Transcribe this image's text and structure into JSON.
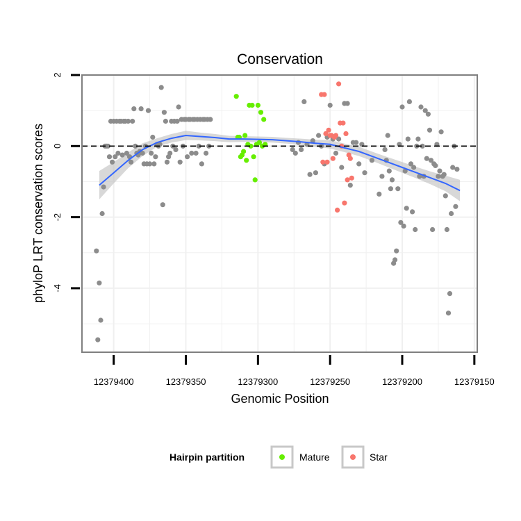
{
  "chart_data": {
    "type": "scatter",
    "title": "Conservation",
    "xlabel": "Genomic Position",
    "ylabel": "phyloP LRT conservation scores",
    "xlim": [
      12379422,
      12379148
    ],
    "ylim": [
      -5.8,
      2.0
    ],
    "x_reversed": true,
    "x_ticks": [
      12379400,
      12379350,
      12379300,
      12379250,
      12379200,
      12379150
    ],
    "x_tick_labels": [
      "12379400",
      "12379350",
      "12379300",
      "12379250",
      "12379200",
      "12379150"
    ],
    "y_ticks": [
      2,
      0,
      -2,
      -4
    ],
    "y_tick_labels": [
      "2",
      "0",
      "-2",
      "-4"
    ],
    "reference_line": {
      "y": 0,
      "style": "dashed"
    },
    "grid": true,
    "colors": {
      "other": "#8c8c8c",
      "mature": "#66ee00",
      "star": "#f8766d",
      "smooth": "#3366ff",
      "ribbon": "#bebebe",
      "panel_border": "#7f7f7f",
      "grid": "#f0f0f0"
    },
    "legend": {
      "title": "Hairpin partition",
      "position": "bottom",
      "entries": [
        {
          "label": "Mature",
          "color": "#66ee00"
        },
        {
          "label": "Star",
          "color": "#f8766d"
        }
      ]
    },
    "series": [
      {
        "name": "Other",
        "color": "#8c8c8c",
        "points": [
          [
            12379412,
            -2.95
          ],
          [
            12379411,
            -5.45
          ],
          [
            12379410,
            -3.85
          ],
          [
            12379409,
            -4.9
          ],
          [
            12379408,
            -1.9
          ],
          [
            12379407,
            -1.15
          ],
          [
            12379406,
            0.0
          ],
          [
            12379405,
            0.0
          ],
          [
            12379404,
            0.0
          ],
          [
            12379403,
            -0.3
          ],
          [
            12379402,
            0.7
          ],
          [
            12379401,
            -0.45
          ],
          [
            12379400,
            0.7
          ],
          [
            12379399,
            -0.3
          ],
          [
            12379398,
            0.7
          ],
          [
            12379397,
            -0.2
          ],
          [
            12379396,
            0.7
          ],
          [
            12379395,
            0.7
          ],
          [
            12379394,
            -0.25
          ],
          [
            12379393,
            0.7
          ],
          [
            12379392,
            0.7
          ],
          [
            12379391,
            -0.2
          ],
          [
            12379390,
            0.7
          ],
          [
            12379389,
            -0.3
          ],
          [
            12379388,
            -0.45
          ],
          [
            12379387,
            0.7
          ],
          [
            12379386,
            1.05
          ],
          [
            12379385,
            0.0
          ],
          [
            12379384,
            -0.2
          ],
          [
            12379383,
            -0.25
          ],
          [
            12379382,
            -0.15
          ],
          [
            12379381,
            1.05
          ],
          [
            12379380,
            -0.2
          ],
          [
            12379379,
            -0.5
          ],
          [
            12379378,
            0.0
          ],
          [
            12379377,
            -0.5
          ],
          [
            12379376,
            1.0
          ],
          [
            12379375,
            -0.5
          ],
          [
            12379374,
            -0.2
          ],
          [
            12379373,
            0.25
          ],
          [
            12379372,
            -0.5
          ],
          [
            12379371,
            -0.3
          ],
          [
            12379370,
            0.05
          ],
          [
            12379369,
            0.0
          ],
          [
            12379368,
            0.05
          ],
          [
            12379367,
            1.65
          ],
          [
            12379366,
            -1.65
          ],
          [
            12379365,
            0.95
          ],
          [
            12379364,
            0.7
          ],
          [
            12379363,
            -0.45
          ],
          [
            12379362,
            -0.3
          ],
          [
            12379361,
            -0.2
          ],
          [
            12379360,
            0.7
          ],
          [
            12379359,
            0.0
          ],
          [
            12379358,
            0.7
          ],
          [
            12379357,
            -0.1
          ],
          [
            12379356,
            0.7
          ],
          [
            12379355,
            1.1
          ],
          [
            12379354,
            -0.45
          ],
          [
            12379353,
            0.75
          ],
          [
            12379352,
            0.0
          ],
          [
            12379351,
            0.75
          ],
          [
            12379350,
            0.75
          ],
          [
            12379349,
            -0.3
          ],
          [
            12379348,
            0.75
          ],
          [
            12379347,
            0.75
          ],
          [
            12379346,
            -0.2
          ],
          [
            12379345,
            0.75
          ],
          [
            12379344,
            0.75
          ],
          [
            12379343,
            -0.2
          ],
          [
            12379342,
            0.75
          ],
          [
            12379341,
            0.0
          ],
          [
            12379340,
            0.75
          ],
          [
            12379339,
            -0.5
          ],
          [
            12379338,
            0.75
          ],
          [
            12379337,
            0.75
          ],
          [
            12379336,
            -0.2
          ],
          [
            12379335,
            0.75
          ],
          [
            12379334,
            0.0
          ],
          [
            12379333,
            0.75
          ],
          [
            12379276,
            -0.1
          ],
          [
            12379274,
            -0.2
          ],
          [
            12379272,
            0.1
          ],
          [
            12379270,
            -0.1
          ],
          [
            12379268,
            1.25
          ],
          [
            12379266,
            0.05
          ],
          [
            12379264,
            -0.8
          ],
          [
            12379262,
            0.15
          ],
          [
            12379260,
            -0.75
          ],
          [
            12379258,
            0.3
          ],
          [
            12379256,
            0.0
          ],
          [
            12379254,
            -0.5
          ],
          [
            12379252,
            0.25
          ],
          [
            12379250,
            1.15
          ],
          [
            12379248,
            0.2
          ],
          [
            12379246,
            -0.2
          ],
          [
            12379244,
            0.2
          ],
          [
            12379242,
            -0.6
          ],
          [
            12379240,
            1.2
          ],
          [
            12379238,
            1.2
          ],
          [
            12379236,
            -1.1
          ],
          [
            12379234,
            0.1
          ],
          [
            12379232,
            0.1
          ],
          [
            12379230,
            -0.5
          ],
          [
            12379228,
            0.05
          ],
          [
            12379226,
            -0.75
          ],
          [
            12379221,
            -0.4
          ],
          [
            12379216,
            -1.35
          ],
          [
            12379214,
            -0.85
          ],
          [
            12379212,
            -0.1
          ],
          [
            12379211,
            -0.4
          ],
          [
            12379210,
            0.3
          ],
          [
            12379209,
            -0.7
          ],
          [
            12379208,
            -1.2
          ],
          [
            12379207,
            -0.95
          ],
          [
            12379206,
            -3.3
          ],
          [
            12379205,
            -3.2
          ],
          [
            12379204,
            -2.95
          ],
          [
            12379203,
            -1.2
          ],
          [
            12379202,
            0.05
          ],
          [
            12379201,
            -2.15
          ],
          [
            12379200,
            1.1
          ],
          [
            12379199,
            -2.25
          ],
          [
            12379198,
            -0.7
          ],
          [
            12379197,
            -1.75
          ],
          [
            12379196,
            0.2
          ],
          [
            12379195,
            1.25
          ],
          [
            12379194,
            -0.5
          ],
          [
            12379193,
            -1.85
          ],
          [
            12379192,
            -0.6
          ],
          [
            12379191,
            -2.35
          ],
          [
            12379190,
            0.0
          ],
          [
            12379189,
            0.2
          ],
          [
            12379188,
            -0.85
          ],
          [
            12379187,
            1.1
          ],
          [
            12379186,
            0.0
          ],
          [
            12379185,
            -0.85
          ],
          [
            12379184,
            1.0
          ],
          [
            12379183,
            -0.35
          ],
          [
            12379182,
            0.9
          ],
          [
            12379181,
            0.45
          ],
          [
            12379180,
            -0.4
          ],
          [
            12379179,
            -2.35
          ],
          [
            12379178,
            -0.5
          ],
          [
            12379177,
            -0.55
          ],
          [
            12379176,
            0.05
          ],
          [
            12379175,
            -0.85
          ],
          [
            12379174,
            -0.7
          ],
          [
            12379173,
            0.4
          ],
          [
            12379172,
            -0.85
          ],
          [
            12379171,
            -0.8
          ],
          [
            12379170,
            -1.4
          ],
          [
            12379169,
            -2.35
          ],
          [
            12379168,
            -4.7
          ],
          [
            12379167,
            -4.15
          ],
          [
            12379166,
            -1.9
          ],
          [
            12379165,
            -0.6
          ],
          [
            12379164,
            0.0
          ],
          [
            12379163,
            -1.7
          ],
          [
            12379162,
            -0.65
          ]
        ]
      },
      {
        "name": "Mature",
        "color": "#66ee00",
        "points": [
          [
            12379315,
            1.4
          ],
          [
            12379314,
            0.25
          ],
          [
            12379313,
            0.25
          ],
          [
            12379312,
            -0.3
          ],
          [
            12379311,
            -0.25
          ],
          [
            12379310,
            -0.15
          ],
          [
            12379309,
            0.3
          ],
          [
            12379308,
            -0.4
          ],
          [
            12379307,
            0.05
          ],
          [
            12379306,
            1.15
          ],
          [
            12379305,
            0.0
          ],
          [
            12379304,
            1.15
          ],
          [
            12379303,
            -0.3
          ],
          [
            12379302,
            -0.95
          ],
          [
            12379301,
            0.05
          ],
          [
            12379300,
            1.15
          ],
          [
            12379299,
            0.1
          ],
          [
            12379298,
            0.95
          ],
          [
            12379297,
            0.0
          ],
          [
            12379296,
            0.75
          ],
          [
            12379295,
            0.05
          ]
        ]
      },
      {
        "name": "Star",
        "color": "#f8766d",
        "points": [
          [
            12379256,
            1.45
          ],
          [
            12379255,
            -0.45
          ],
          [
            12379254,
            1.45
          ],
          [
            12379253,
            0.35
          ],
          [
            12379252,
            -0.45
          ],
          [
            12379251,
            0.45
          ],
          [
            12379250,
            0.3
          ],
          [
            12379249,
            0.3
          ],
          [
            12379248,
            -0.35
          ],
          [
            12379247,
            0.25
          ],
          [
            12379246,
            0.3
          ],
          [
            12379245,
            -1.8
          ],
          [
            12379244,
            1.75
          ],
          [
            12379243,
            0.65
          ],
          [
            12379242,
            0.0
          ],
          [
            12379241,
            0.65
          ],
          [
            12379240,
            -1.6
          ],
          [
            12379239,
            0.35
          ],
          [
            12379238,
            -0.95
          ],
          [
            12379237,
            -0.25
          ],
          [
            12379236,
            -0.35
          ],
          [
            12379235,
            -0.9
          ]
        ]
      }
    ],
    "smooth": {
      "x": [
        12379410,
        12379400,
        12379390,
        12379380,
        12379370,
        12379360,
        12379350,
        12379340,
        12379330,
        12379320,
        12379310,
        12379300,
        12379290,
        12379280,
        12379270,
        12379260,
        12379250,
        12379240,
        12379230,
        12379220,
        12379210,
        12379200,
        12379190,
        12379180,
        12379170,
        12379160
      ],
      "y": [
        -1.1,
        -0.75,
        -0.4,
        -0.1,
        0.1,
        0.22,
        0.3,
        0.27,
        0.24,
        0.2,
        0.2,
        0.19,
        0.18,
        0.15,
        0.12,
        0.08,
        0.05,
        -0.05,
        -0.15,
        -0.3,
        -0.45,
        -0.6,
        -0.75,
        -0.9,
        -1.05,
        -1.25
      ],
      "lower": [
        -1.5,
        -1.05,
        -0.62,
        -0.28,
        -0.02,
        0.1,
        0.17,
        0.16,
        0.14,
        0.11,
        0.12,
        0.11,
        0.1,
        0.07,
        0.03,
        -0.02,
        -0.07,
        -0.17,
        -0.28,
        -0.43,
        -0.59,
        -0.75,
        -0.91,
        -1.08,
        -1.27,
        -1.55
      ],
      "upper": [
        -0.7,
        -0.45,
        -0.18,
        0.08,
        0.22,
        0.34,
        0.43,
        0.38,
        0.34,
        0.29,
        0.28,
        0.27,
        0.26,
        0.23,
        0.21,
        0.18,
        0.17,
        0.07,
        -0.02,
        -0.17,
        -0.31,
        -0.45,
        -0.59,
        -0.72,
        -0.83,
        -0.95
      ]
    }
  }
}
